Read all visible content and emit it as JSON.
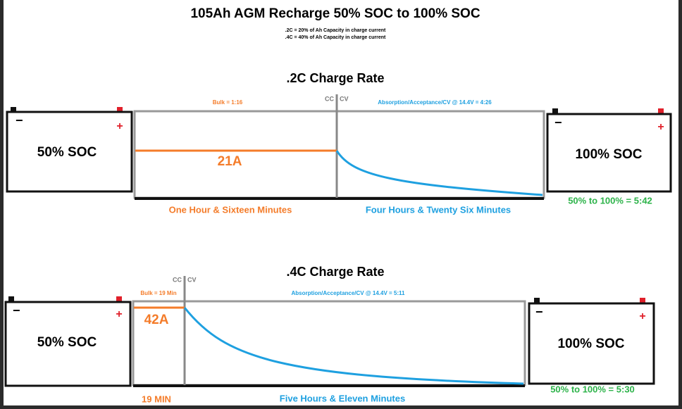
{
  "title": "105Ah AGM Recharge 50% SOC to 100% SOC",
  "notes": [
    ".2C = 20% of Ah Capacity in charge current",
    ".4C = 40% of Ah Capacity in charge current"
  ],
  "terminals": {
    "minus": "−",
    "plus": "+"
  },
  "sections": [
    {
      "heading": ".2C Charge Rate",
      "start": "50% SOC",
      "end": "100% SOC",
      "bulk": "Bulk = 1:16",
      "cc": "CC",
      "cv": "CV",
      "absorption": "Absorption/Acceptance/CV @ 14.4V = 4:26",
      "current": "21A",
      "bulk_time": "One Hour & Sixteen Minutes",
      "absorption_time": "Four Hours & Twenty Six Minutes",
      "total": "50% to 100% = 5:42"
    },
    {
      "heading": ".4C Charge Rate",
      "start": "50% SOC",
      "end": "100% SOC",
      "bulk": "Bulk = 19 Min",
      "cc": "CC",
      "cv": "CV",
      "absorption": "Absorption/Acceptance/CV @ 14.4V = 5:11",
      "current": "42A",
      "bulk_time": "19 MIN",
      "absorption_time": "Five Hours & Eleven Minutes",
      "total": "50% to 100% = 5:30"
    }
  ]
}
